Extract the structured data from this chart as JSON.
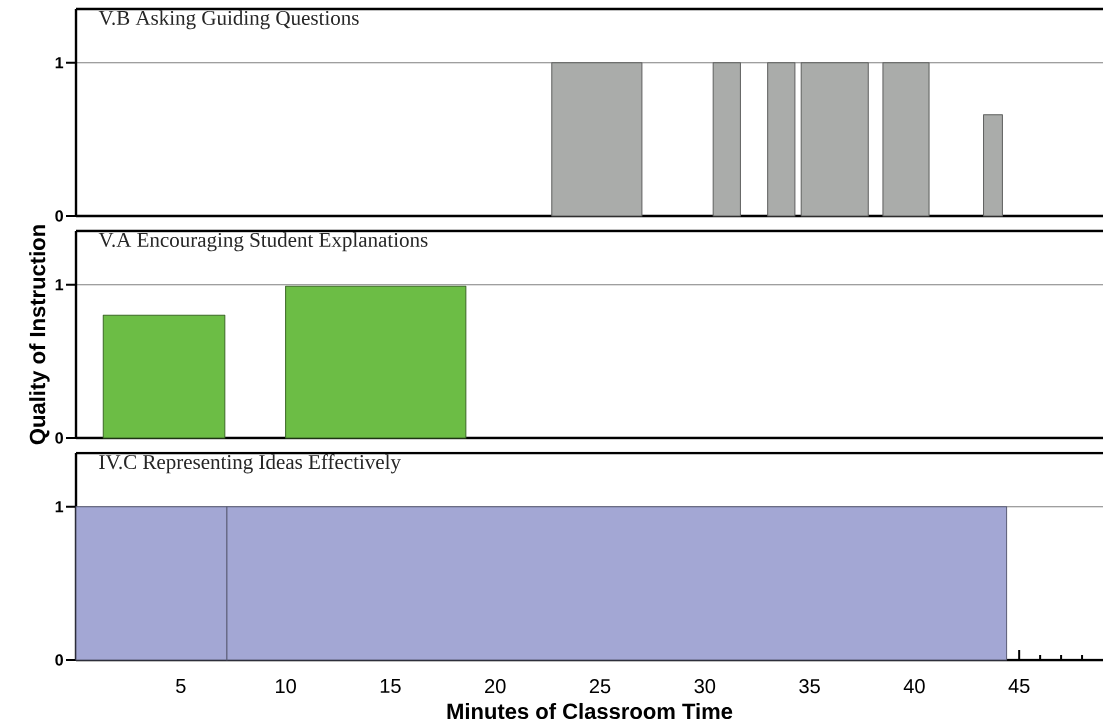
{
  "chart_data": [
    {
      "type": "histogram",
      "title": "V.B Asking Guiding Questions",
      "bins": [
        22.7,
        27.0,
        30.4,
        31.7,
        33.0,
        34.3,
        34.6,
        37.8,
        38.5,
        40.7,
        43.3,
        44.2
      ],
      "values": [
        1,
        null,
        1,
        null,
        1,
        null,
        1,
        null,
        1,
        null,
        0.66
      ],
      "color": "#aaacaa",
      "xlim": [
        0,
        49
      ],
      "ylim": [
        0,
        1.35
      ],
      "yticks": [
        0,
        1
      ],
      "grid": "y",
      "tick_labels": "y"
    },
    {
      "type": "histogram",
      "title": "V.A Encouraging Student Explanations",
      "ylabel": "Quality of Instruction",
      "bins": [
        1.3,
        7.1,
        10.0,
        18.6
      ],
      "values": [
        0.8,
        null,
        0.99
      ],
      "color": "#6cbd45",
      "xlim": [
        0,
        49
      ],
      "ylim": [
        0,
        1.35
      ],
      "yticks": [
        0,
        1
      ],
      "grid": "y",
      "tick_labels": "y"
    },
    {
      "type": "histogram",
      "title": "IV.C Representing Ideas Effectively",
      "xlabel": "Minutes of Classroom Time",
      "bins": [
        0,
        7.2,
        44.4
      ],
      "values": [
        1,
        1
      ],
      "color": "#a3a7d4",
      "xlim": [
        0,
        49
      ],
      "ylim": [
        0,
        1.35
      ],
      "yticks": [
        0,
        1
      ],
      "grid": "y",
      "xticks": [
        {
          "value": 1,
          "label": null
        },
        {
          "value": 2,
          "label": null
        },
        {
          "value": 3,
          "label": null
        },
        {
          "value": 4,
          "label": null
        },
        5,
        {
          "value": 6,
          "label": null
        },
        {
          "value": 7,
          "label": null
        },
        {
          "value": 8,
          "label": null
        },
        {
          "value": 9,
          "label": null
        },
        10,
        {
          "value": 11,
          "label": null
        },
        {
          "value": 12,
          "label": null
        },
        {
          "value": 13,
          "label": null
        },
        {
          "value": 14,
          "label": null
        },
        15,
        {
          "value": 16,
          "label": null
        },
        {
          "value": 17,
          "label": null
        },
        {
          "value": 18,
          "label": null
        },
        {
          "value": 19,
          "label": null
        },
        20,
        {
          "value": 21,
          "label": null
        },
        {
          "value": 22,
          "label": null
        },
        {
          "value": 23,
          "label": null
        },
        {
          "value": 24,
          "label": null
        },
        25,
        {
          "value": 26,
          "label": null
        },
        {
          "value": 27,
          "label": null
        },
        {
          "value": 28,
          "label": null
        },
        {
          "value": 29,
          "label": null
        },
        30,
        {
          "value": 31,
          "label": null
        },
        {
          "value": 32,
          "label": null
        },
        {
          "value": 33,
          "label": null
        },
        {
          "value": 34,
          "label": null
        },
        35,
        {
          "value": 36,
          "label": null
        },
        {
          "value": 37,
          "label": null
        },
        {
          "value": 38,
          "label": null
        },
        {
          "value": 39,
          "label": null
        },
        40,
        {
          "value": 41,
          "label": null
        },
        {
          "value": 42,
          "label": null
        },
        {
          "value": 43,
          "label": null
        },
        {
          "value": 44,
          "label": null
        },
        45,
        {
          "value": 46,
          "label": null
        },
        {
          "value": 47,
          "label": null
        },
        {
          "value": 48,
          "label": null
        }
      ]
    }
  ]
}
